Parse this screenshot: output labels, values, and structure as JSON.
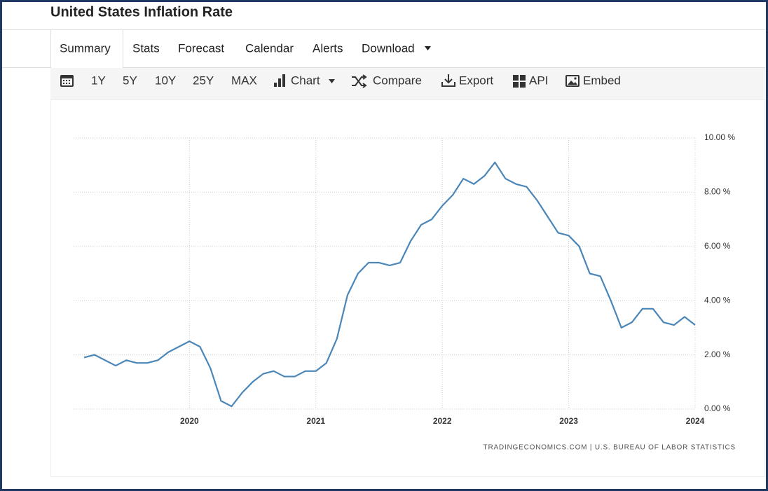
{
  "header": {
    "title": "United States Inflation Rate"
  },
  "tabs": [
    "Summary",
    "Stats",
    "Forecast",
    "Calendar",
    "Alerts",
    "Download"
  ],
  "toolbar": [
    "1Y",
    "5Y",
    "10Y",
    "25Y",
    "MAX",
    "Chart",
    "Compare",
    "Export",
    "API",
    "Embed"
  ],
  "chart_data": {
    "type": "line",
    "source": "TRADINGECONOMICS.COM  |  U.S. BUREAU OF LABOR STATISTICS",
    "categories": [
      null,
      null,
      null,
      null,
      null,
      null,
      null,
      null,
      null,
      null,
      "2020",
      null,
      null,
      null,
      null,
      null,
      null,
      null,
      null,
      null,
      null,
      null,
      "2021",
      null,
      null,
      null,
      null,
      null,
      null,
      null,
      null,
      null,
      null,
      null,
      "2022",
      null,
      null,
      null,
      null,
      null,
      null,
      null,
      null,
      null,
      null,
      null,
      "2023",
      null,
      null,
      null,
      null,
      null,
      null,
      null,
      null,
      null,
      null,
      null,
      "2024"
    ],
    "values": [
      1.9,
      2.0,
      1.8,
      1.6,
      1.8,
      1.7,
      1.7,
      1.8,
      2.1,
      2.3,
      2.5,
      2.3,
      1.5,
      0.3,
      0.1,
      0.6,
      1.0,
      1.3,
      1.4,
      1.2,
      1.2,
      1.4,
      1.4,
      1.7,
      2.6,
      4.2,
      5.0,
      5.4,
      5.4,
      5.3,
      5.4,
      6.2,
      6.8,
      7.0,
      7.5,
      7.9,
      8.5,
      8.3,
      8.6,
      9.1,
      8.5,
      8.3,
      8.2,
      7.7,
      7.1,
      6.5,
      6.4,
      6.0,
      5.0,
      4.9,
      4.0,
      3.0,
      3.2,
      3.7,
      3.7,
      3.2,
      3.1,
      3.4,
      3.1
    ],
    "color": "#4a86b8",
    "ylim": [
      0,
      10
    ],
    "yticks": [
      {
        "value": 0,
        "label": "0.00 %"
      },
      {
        "value": 2,
        "label": "2.00 %"
      },
      {
        "value": 4,
        "label": "4.00 %"
      },
      {
        "value": 6,
        "label": "6.00 %"
      },
      {
        "value": 8,
        "label": "8.00 %"
      },
      {
        "value": 10,
        "label": "10.00 %"
      }
    ],
    "grid": true
  }
}
